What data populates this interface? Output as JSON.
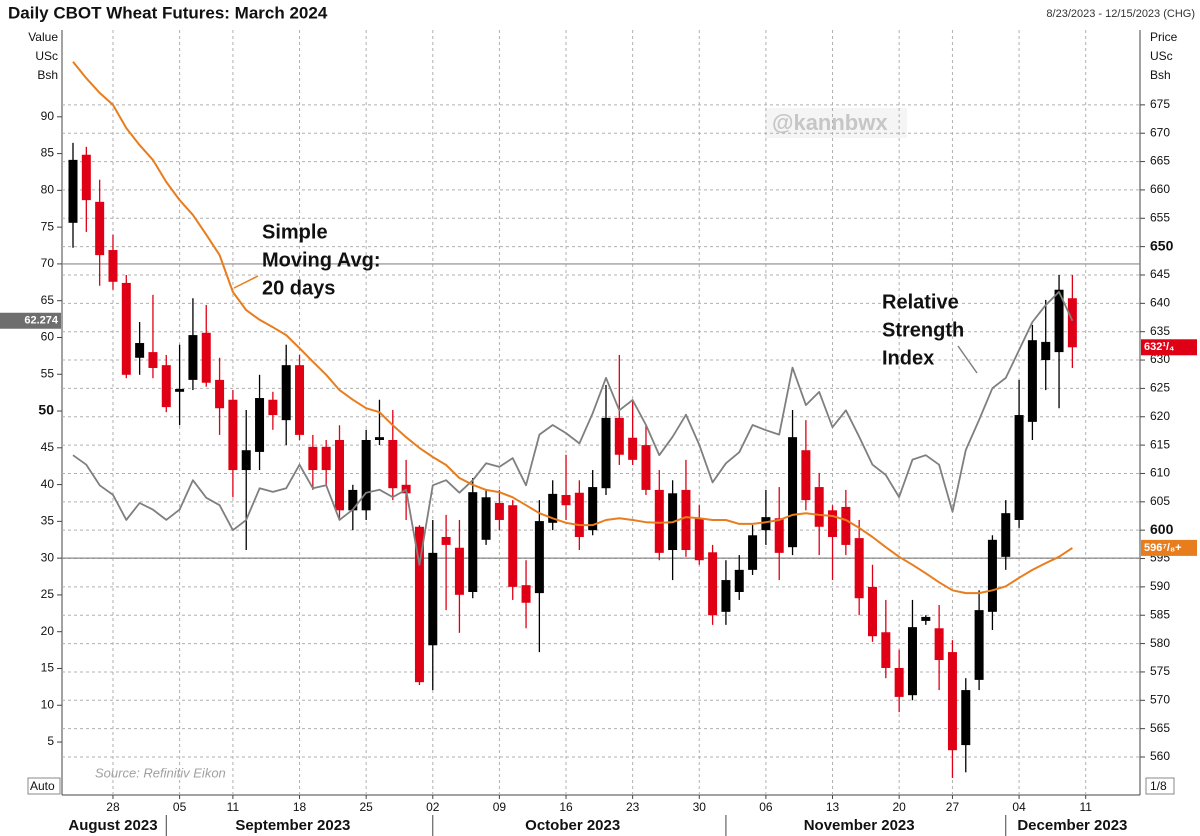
{
  "chart_data": {
    "type": "candlestick",
    "title": "Daily CBOT Wheat Futures: March 2024",
    "subtitle": "8/23/2023 - 12/15/2023 (CHG)",
    "y_axis_label_lines": [
      "Value",
      "USc",
      "Bsh"
    ],
    "y2_axis_label_lines": [
      "Price",
      "USc",
      "Bsh"
    ],
    "x": [
      "2023-08-23",
      "2023-08-24",
      "2023-08-25",
      "2023-08-28",
      "2023-08-29",
      "2023-08-30",
      "2023-08-31",
      "2023-09-01",
      "2023-09-05",
      "2023-09-06",
      "2023-09-07",
      "2023-09-08",
      "2023-09-11",
      "2023-09-12",
      "2023-09-13",
      "2023-09-14",
      "2023-09-15",
      "2023-09-18",
      "2023-09-19",
      "2023-09-20",
      "2023-09-21",
      "2023-09-22",
      "2023-09-25",
      "2023-09-26",
      "2023-09-27",
      "2023-09-28",
      "2023-09-29",
      "2023-10-02",
      "2023-10-03",
      "2023-10-04",
      "2023-10-05",
      "2023-10-06",
      "2023-10-09",
      "2023-10-10",
      "2023-10-11",
      "2023-10-12",
      "2023-10-13",
      "2023-10-16",
      "2023-10-17",
      "2023-10-18",
      "2023-10-19",
      "2023-10-20",
      "2023-10-23",
      "2023-10-24",
      "2023-10-25",
      "2023-10-26",
      "2023-10-27",
      "2023-10-30",
      "2023-10-31",
      "2023-11-01",
      "2023-11-02",
      "2023-11-03",
      "2023-11-06",
      "2023-11-07",
      "2023-11-08",
      "2023-11-09",
      "2023-11-10",
      "2023-11-13",
      "2023-11-14",
      "2023-11-15",
      "2023-11-16",
      "2023-11-17",
      "2023-11-20",
      "2023-11-21",
      "2023-11-22",
      "2023-11-24",
      "2023-11-27",
      "2023-11-28",
      "2023-11-29",
      "2023-11-30",
      "2023-12-01",
      "2023-12-04",
      "2023-12-05",
      "2023-12-06",
      "2023-12-07",
      "2023-12-08",
      "2023-12-11",
      "2023-12-12",
      "2023-12-13",
      "2023-12-14",
      "2023-12-15"
    ],
    "xticks": [
      {
        "value": "2023-08-28",
        "label": "28"
      },
      {
        "value": "2023-09-05",
        "label": "05"
      },
      {
        "value": "2023-09-11",
        "label": "11"
      },
      {
        "value": "2023-09-18",
        "label": "18"
      },
      {
        "value": "2023-09-25",
        "label": "25"
      },
      {
        "value": "2023-10-02",
        "label": "02"
      },
      {
        "value": "2023-10-09",
        "label": "09"
      },
      {
        "value": "2023-10-16",
        "label": "16"
      },
      {
        "value": "2023-10-23",
        "label": "23"
      },
      {
        "value": "2023-10-30",
        "label": "30"
      },
      {
        "value": "2023-11-06",
        "label": "06"
      },
      {
        "value": "2023-11-13",
        "label": "13"
      },
      {
        "value": "2023-11-20",
        "label": "20"
      },
      {
        "value": "2023-11-27",
        "label": "27"
      },
      {
        "value": "2023-12-04",
        "label": "04"
      },
      {
        "value": "2023-12-11",
        "label": "11"
      }
    ],
    "months": [
      {
        "value": "2023-08",
        "label": "August 2023"
      },
      {
        "value": "2023-09",
        "label": "September 2023"
      },
      {
        "value": "2023-10",
        "label": "October 2023"
      },
      {
        "value": "2023-11",
        "label": "November 2023"
      },
      {
        "value": "2023-12",
        "label": "December 2023"
      }
    ],
    "ylim": [
      -2.2,
      101.8
    ],
    "yticks": [
      5,
      10,
      15,
      20,
      25,
      30,
      35,
      40,
      45,
      50,
      55,
      60,
      65,
      70,
      75,
      80,
      85,
      90
    ],
    "y_bold_ticks": [
      50
    ],
    "y2lim": [
      553.3,
      688.2
    ],
    "y2ticks": [
      560,
      565,
      570,
      575,
      580,
      585,
      590,
      595,
      600,
      605,
      610,
      615,
      620,
      625,
      630,
      635,
      640,
      645,
      650,
      655,
      660,
      665,
      670,
      675
    ],
    "y2_bold_ticks": [
      600,
      650
    ],
    "grid": true,
    "candles": {
      "axis": "y2",
      "up_color": "#000000",
      "down_color": "#e00015",
      "last_value_label": "632¹/₄",
      "open": [
        654.2,
        666.2,
        657.9,
        649.4,
        643.6,
        630.4,
        631.4,
        629.1,
        624.4,
        626.5,
        634.8,
        626.5,
        623.0,
        610.6,
        613.8,
        623.0,
        619.4,
        629.1,
        614.7,
        614.7,
        615.9,
        603.5,
        603.5,
        615.9,
        615.9,
        608.0,
        600.6,
        579.7,
        598.8,
        596.9,
        589.1,
        598.3,
        604.8,
        604.4,
        590.3,
        588.9,
        601.3,
        606.2,
        606.6,
        600.0,
        607.4,
        619.8,
        616.3,
        615.0,
        607.1,
        596.5,
        607.1,
        602.1,
        596.1,
        585.6,
        589.1,
        593.0,
        600.0,
        602.1,
        597.0,
        614.1,
        607.6,
        603.5,
        604.1,
        598.6,
        590.0,
        582.0,
        575.7,
        570.9,
        584.0,
        582.7,
        578.5,
        562.1,
        573.6,
        585.6,
        595.3,
        601.8,
        619.1,
        630.0,
        631.4,
        640.9,
        null,
        null,
        null,
        null,
        null
      ],
      "high": [
        668.3,
        667.6,
        661.8,
        652.1,
        645.0,
        636.7,
        641.5,
        630.9,
        632.7,
        640.9,
        639.7,
        630.4,
        624.7,
        621.2,
        627.4,
        624.4,
        632.7,
        630.9,
        616.8,
        615.9,
        618.5,
        608.0,
        617.7,
        623.0,
        621.2,
        612.4,
        600.9,
        601.8,
        602.7,
        601.8,
        609.2,
        607.1,
        607.1,
        605.3,
        594.7,
        605.3,
        608.8,
        613.3,
        608.8,
        610.6,
        625.6,
        630.9,
        623.0,
        618.5,
        610.6,
        608.8,
        612.4,
        604.4,
        597.4,
        594.7,
        595.6,
        600.9,
        607.1,
        607.6,
        621.2,
        619.4,
        610.1,
        604.4,
        607.1,
        601.8,
        593.9,
        587.7,
        578.9,
        587.7,
        585.0,
        586.8,
        580.6,
        573.9,
        589.4,
        599.1,
        605.3,
        626.5,
        636.2,
        640.6,
        645.0,
        645.0,
        null,
        null,
        null,
        null,
        null
      ],
      "low": [
        649.8,
        652.6,
        643.1,
        642.4,
        626.8,
        627.4,
        626.8,
        620.8,
        618.5,
        624.7,
        625.3,
        616.8,
        605.8,
        596.5,
        610.6,
        617.7,
        615.0,
        615.9,
        607.1,
        608.0,
        602.1,
        600.0,
        601.8,
        615.0,
        605.3,
        601.8,
        572.7,
        571.8,
        585.9,
        581.9,
        588.0,
        597.4,
        600.0,
        587.7,
        582.7,
        578.5,
        600.0,
        601.8,
        596.5,
        599.1,
        606.2,
        611.5,
        611.5,
        606.2,
        594.7,
        591.2,
        595.3,
        593.9,
        583.3,
        583.3,
        587.7,
        592.1,
        597.4,
        591.2,
        595.6,
        603.5,
        595.6,
        591.2,
        595.6,
        585.0,
        580.3,
        573.9,
        567.9,
        570.0,
        583.3,
        571.8,
        556.3,
        557.3,
        571.8,
        582.4,
        593.0,
        600.4,
        615.9,
        624.7,
        621.5,
        628.6,
        null,
        null,
        null,
        null,
        null
      ],
      "close": [
        665.3,
        658.2,
        648.5,
        643.8,
        627.4,
        633.0,
        628.6,
        621.7,
        624.9,
        634.4,
        626.0,
        621.5,
        610.6,
        614.1,
        623.3,
        620.3,
        629.1,
        616.8,
        610.6,
        610.6,
        603.5,
        607.1,
        615.9,
        616.4,
        607.4,
        606.5,
        573.2,
        596.0,
        597.4,
        588.6,
        606.7,
        605.8,
        601.8,
        590.0,
        587.2,
        601.6,
        606.4,
        604.4,
        598.8,
        607.6,
        619.8,
        613.3,
        612.4,
        607.1,
        596.0,
        606.5,
        596.5,
        594.7,
        585.0,
        591.2,
        593.0,
        599.1,
        602.3,
        596.0,
        616.4,
        605.3,
        600.6,
        598.8,
        597.4,
        588.0,
        581.3,
        575.7,
        570.6,
        582.9,
        584.7,
        577.1,
        561.2,
        571.8,
        585.9,
        598.3,
        603.0,
        620.3,
        633.5,
        633.2,
        642.4,
        632.25,
        null,
        null,
        null,
        null,
        null
      ]
    },
    "sma": {
      "axis": "y2",
      "color": "#e87d1e",
      "label_lines": [
        "Simple",
        "Moving Avg:",
        "20 days"
      ],
      "last_value_label": "596⁷/₈+",
      "values": [
        682.6,
        679.7,
        677.1,
        675.0,
        670.9,
        667.9,
        665.3,
        661.4,
        658.2,
        655.6,
        652.1,
        648.5,
        642.0,
        638.8,
        637.1,
        635.8,
        634.4,
        632.1,
        629.7,
        627.4,
        624.7,
        623.0,
        621.5,
        620.8,
        618.5,
        616.4,
        614.5,
        612.9,
        611.5,
        609.2,
        608.0,
        607.1,
        606.7,
        605.8,
        604.4,
        603.0,
        602.1,
        601.3,
        600.9,
        600.9,
        601.8,
        602.1,
        601.8,
        601.4,
        601.3,
        601.4,
        602.3,
        602.1,
        601.8,
        601.8,
        601.1,
        601.1,
        601.4,
        601.8,
        602.7,
        603.0,
        602.7,
        602.5,
        601.8,
        600.4,
        598.8,
        597.0,
        595.3,
        593.9,
        592.4,
        590.8,
        589.4,
        588.9,
        588.9,
        589.4,
        590.1,
        591.6,
        593.0,
        594.2,
        595.3,
        596.875,
        null,
        null,
        null,
        null,
        null
      ]
    },
    "rsi": {
      "axis": "y",
      "color": "#7f7f7f",
      "label_lines": [
        "Relative",
        "Strength",
        "Index"
      ],
      "ref_lines": [
        70,
        30
      ],
      "values": [
        44.0,
        42.7,
        39.9,
        38.6,
        35.2,
        37.5,
        36.6,
        35.2,
        36.6,
        40.6,
        38.2,
        37.2,
        33.8,
        35.2,
        39.5,
        39.0,
        39.5,
        42.7,
        39.5,
        39.9,
        35.2,
        36.6,
        38.9,
        39.3,
        38.3,
        39.3,
        29.1,
        39.9,
        40.6,
        38.9,
        40.6,
        42.9,
        42.4,
        43.6,
        39.9,
        46.8,
        48.1,
        47.0,
        45.6,
        49.7,
        54.5,
        50.1,
        51.5,
        48.1,
        44.0,
        46.5,
        49.5,
        45.4,
        40.3,
        42.9,
        44.4,
        48.1,
        47.4,
        46.8,
        55.9,
        50.8,
        52.6,
        47.8,
        50.1,
        46.5,
        42.7,
        41.3,
        38.3,
        43.4,
        44.0,
        42.7,
        36.3,
        44.7,
        48.8,
        53.1,
        54.5,
        58.3,
        62.1,
        64.4,
        66.2,
        62.274,
        null,
        null,
        null,
        null,
        null
      ]
    },
    "watermark": "@kannbwx",
    "source": "Source: Refinitiv Eikon",
    "corner_labels": [
      "Auto",
      "1/8"
    ]
  }
}
